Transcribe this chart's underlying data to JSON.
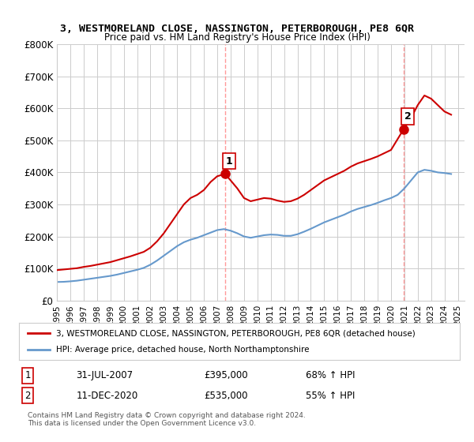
{
  "title1": "3, WESTMORELAND CLOSE, NASSINGTON, PETERBOROUGH, PE8 6QR",
  "title2": "Price paid vs. HM Land Registry's House Price Index (HPI)",
  "ylabel_ticks": [
    "£0",
    "£100K",
    "£200K",
    "£300K",
    "£400K",
    "£500K",
    "£600K",
    "£700K",
    "£800K"
  ],
  "ytick_values": [
    0,
    100000,
    200000,
    300000,
    400000,
    500000,
    600000,
    700000,
    800000
  ],
  "ylim": [
    0,
    800000
  ],
  "xlim_start": 1995.0,
  "xlim_end": 2025.5,
  "sale1_x": 2007.58,
  "sale1_y": 395000,
  "sale1_label": "1",
  "sale2_x": 2020.95,
  "sale2_y": 535000,
  "sale2_label": "2",
  "red_color": "#cc0000",
  "blue_color": "#6699cc",
  "dashed_color": "#ff9999",
  "grid_color": "#cccccc",
  "legend_line1": "3, WESTMORELAND CLOSE, NASSINGTON, PETERBOROUGH, PE8 6QR (detached house)",
  "legend_line2": "HPI: Average price, detached house, North Northamptonshire",
  "table_row1_num": "1",
  "table_row1_date": "31-JUL-2007",
  "table_row1_price": "£395,000",
  "table_row1_hpi": "68% ↑ HPI",
  "table_row2_num": "2",
  "table_row2_date": "11-DEC-2020",
  "table_row2_price": "£535,000",
  "table_row2_hpi": "55% ↑ HPI",
  "footer": "Contains HM Land Registry data © Crown copyright and database right 2024.\nThis data is licensed under the Open Government Licence v3.0.",
  "red_x": [
    1995.0,
    1995.5,
    1996.0,
    1996.5,
    1997.0,
    1997.5,
    1998.0,
    1998.5,
    1999.0,
    1999.5,
    2000.0,
    2000.5,
    2001.0,
    2001.5,
    2002.0,
    2002.5,
    2003.0,
    2003.5,
    2004.0,
    2004.5,
    2005.0,
    2005.5,
    2006.0,
    2006.5,
    2007.0,
    2007.58,
    2008.0,
    2008.5,
    2009.0,
    2009.5,
    2010.0,
    2010.5,
    2011.0,
    2011.5,
    2012.0,
    2012.5,
    2013.0,
    2013.5,
    2014.0,
    2014.5,
    2015.0,
    2015.5,
    2016.0,
    2016.5,
    2017.0,
    2017.5,
    2018.0,
    2018.5,
    2019.0,
    2019.5,
    2020.0,
    2020.95,
    2021.5,
    2022.0,
    2022.5,
    2023.0,
    2023.5,
    2024.0,
    2024.5
  ],
  "red_y": [
    95000,
    97000,
    99000,
    101000,
    105000,
    108000,
    112000,
    116000,
    120000,
    126000,
    132000,
    138000,
    145000,
    152000,
    165000,
    185000,
    210000,
    240000,
    270000,
    300000,
    320000,
    330000,
    345000,
    370000,
    388000,
    395000,
    375000,
    350000,
    320000,
    310000,
    315000,
    320000,
    318000,
    312000,
    308000,
    310000,
    318000,
    330000,
    345000,
    360000,
    375000,
    385000,
    395000,
    405000,
    418000,
    428000,
    435000,
    442000,
    450000,
    460000,
    470000,
    535000,
    570000,
    610000,
    640000,
    630000,
    610000,
    590000,
    580000
  ],
  "blue_x": [
    1995.0,
    1995.5,
    1996.0,
    1996.5,
    1997.0,
    1997.5,
    1998.0,
    1998.5,
    1999.0,
    1999.5,
    2000.0,
    2000.5,
    2001.0,
    2001.5,
    2002.0,
    2002.5,
    2003.0,
    2003.5,
    2004.0,
    2004.5,
    2005.0,
    2005.5,
    2006.0,
    2006.5,
    2007.0,
    2007.5,
    2008.0,
    2008.5,
    2009.0,
    2009.5,
    2010.0,
    2010.5,
    2011.0,
    2011.5,
    2012.0,
    2012.5,
    2013.0,
    2013.5,
    2014.0,
    2014.5,
    2015.0,
    2015.5,
    2016.0,
    2016.5,
    2017.0,
    2017.5,
    2018.0,
    2018.5,
    2019.0,
    2019.5,
    2020.0,
    2020.5,
    2021.0,
    2021.5,
    2022.0,
    2022.5,
    2023.0,
    2023.5,
    2024.0,
    2024.5
  ],
  "blue_y": [
    58000,
    58500,
    60000,
    62000,
    65000,
    68000,
    71000,
    74000,
    77000,
    81000,
    86000,
    91000,
    96000,
    102000,
    112000,
    125000,
    140000,
    155000,
    170000,
    182000,
    190000,
    196000,
    204000,
    212000,
    220000,
    223000,
    218000,
    210000,
    200000,
    196000,
    200000,
    204000,
    206000,
    205000,
    202000,
    202000,
    207000,
    215000,
    224000,
    234000,
    244000,
    252000,
    260000,
    268000,
    278000,
    286000,
    292000,
    298000,
    305000,
    313000,
    320000,
    330000,
    350000,
    375000,
    400000,
    408000,
    405000,
    400000,
    398000,
    395000
  ]
}
